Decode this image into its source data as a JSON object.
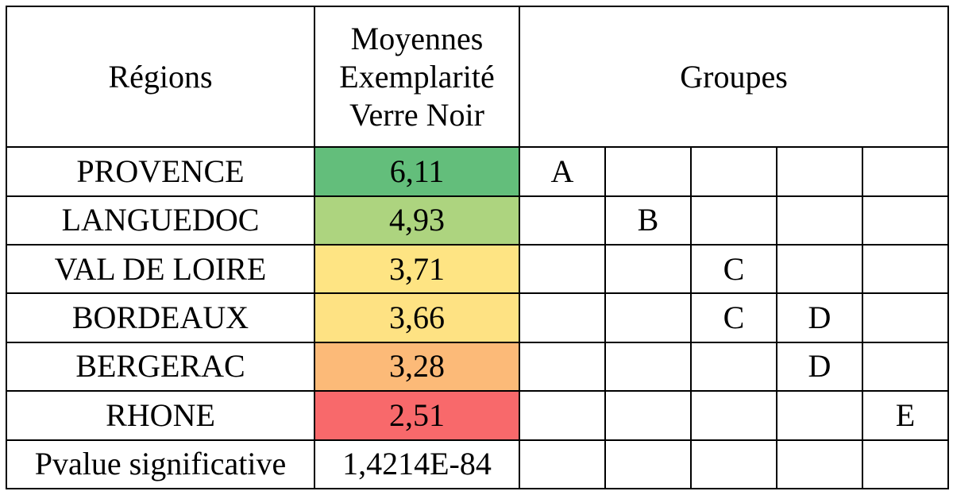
{
  "table": {
    "header": {
      "regions": "Régions",
      "means_line1": "Moyennes",
      "means_line2": "Exemplarité",
      "means_line3": "Verre Noir",
      "groups": "Groupes"
    },
    "rows": [
      {
        "region": "PROVENCE",
        "mean": "6,11",
        "color": "#63be7b",
        "groups": [
          "A",
          "",
          "",
          "",
          ""
        ]
      },
      {
        "region": "LANGUEDOC",
        "mean": "4,93",
        "color": "#add47f",
        "groups": [
          "",
          "B",
          "",
          "",
          ""
        ]
      },
      {
        "region": "VAL DE LOIRE",
        "mean": "3,71",
        "color": "#fee483",
        "groups": [
          "",
          "",
          "C",
          "",
          ""
        ]
      },
      {
        "region": "BORDEAUX",
        "mean": "3,66",
        "color": "#fee283",
        "groups": [
          "",
          "",
          "C",
          "D",
          ""
        ]
      },
      {
        "region": "BERGERAC",
        "mean": "3,28",
        "color": "#fcba78",
        "groups": [
          "",
          "",
          "",
          "D",
          ""
        ]
      },
      {
        "region": "RHONE",
        "mean": "2,51",
        "color": "#f8696b",
        "groups": [
          "",
          "",
          "",
          "",
          "E"
        ]
      }
    ],
    "footer": {
      "label": "Pvalue significative",
      "value": "1,4214E-84"
    }
  }
}
